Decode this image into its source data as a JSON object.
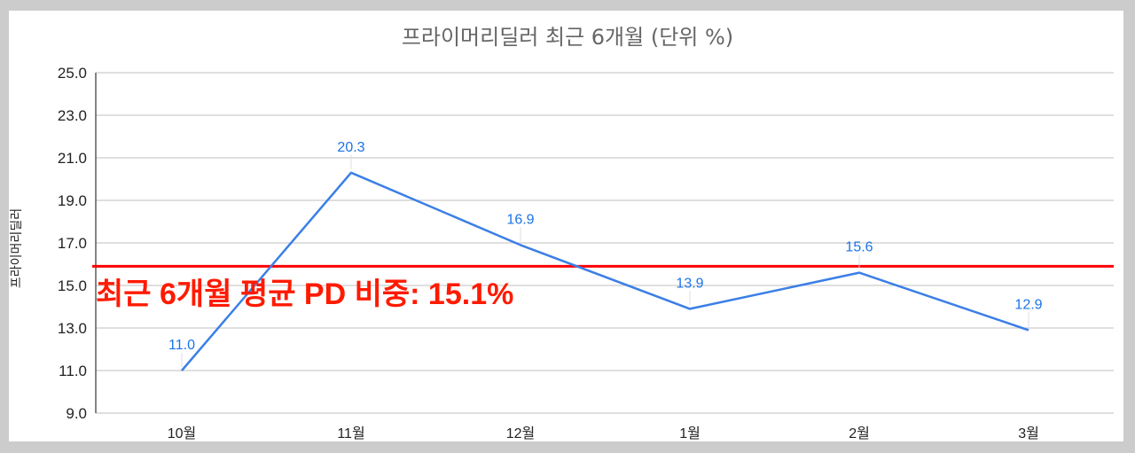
{
  "chart_data": {
    "type": "line",
    "title": "프라이머리딜러 최근 6개월 (단위 %)",
    "xlabel": "",
    "ylabel": "프라이머리딜러",
    "categories": [
      "10월",
      "11월",
      "12월",
      "1월",
      "2월",
      "3월"
    ],
    "series": [
      {
        "name": "프라이머리딜러",
        "values": [
          11.0,
          20.3,
          16.9,
          13.9,
          15.6,
          12.9
        ],
        "color": "#3b7fe6"
      }
    ],
    "ylim": [
      9.0,
      25.0
    ],
    "yticks": [
      "9.0",
      "11.0",
      "13.0",
      "15.0",
      "17.0",
      "19.0",
      "21.0",
      "23.0",
      "25.0"
    ],
    "grid": true,
    "legend": "none",
    "data_labels": [
      "11.0",
      "20.3",
      "16.9",
      "13.9",
      "15.6",
      "12.9"
    ],
    "reference_line": {
      "value": 15.9,
      "color": "#ff0000"
    },
    "annotation": {
      "text": "최근 6개월 평균 PD 비중: 15.1%",
      "color": "#ff1a00"
    }
  }
}
